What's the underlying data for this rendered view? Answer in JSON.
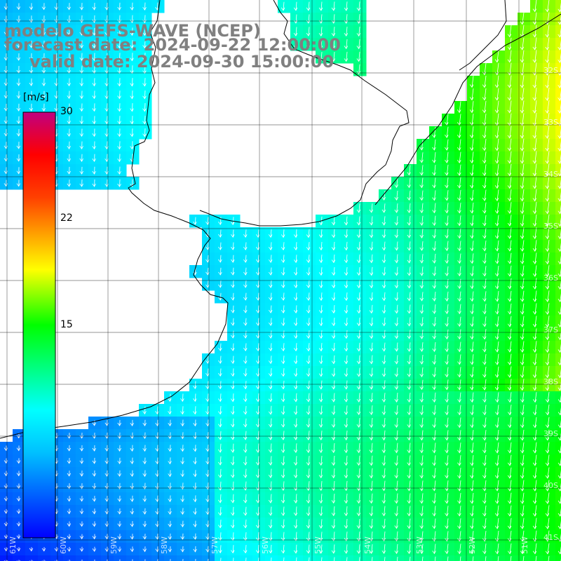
{
  "titles": {
    "line1": "modelo GEFS-WAVE (NCEP)",
    "line2": "forecast date: 2024-09-22 12:00:00",
    "line3": "valid date: 2024-09-30 15:00:00"
  },
  "colorbar": {
    "unit": "[m/s]",
    "min": 0,
    "max": 30,
    "ticks": [
      "30",
      "22",
      "15"
    ],
    "colors": [
      "#0000ff",
      "#0080ff",
      "#00ffff",
      "#00ff80",
      "#00ff00",
      "#ffff00",
      "#ff8000",
      "#ff0000",
      "#c00080"
    ]
  },
  "grid": {
    "lon_labels": [
      "61W",
      "60W",
      "59W",
      "58W",
      "57W",
      "56W",
      "55W",
      "54W",
      "53W",
      "52W",
      "51W"
    ],
    "lat_labels": [
      "32S",
      "33S",
      "34S",
      "35S",
      "36S",
      "37S",
      "38S",
      "39S",
      "40S",
      "41S"
    ]
  },
  "colors": {
    "land": "#ffffff",
    "coast": "#000000",
    "gridline": "#000000",
    "arrow": "#ffffff",
    "title": "#808080"
  }
}
